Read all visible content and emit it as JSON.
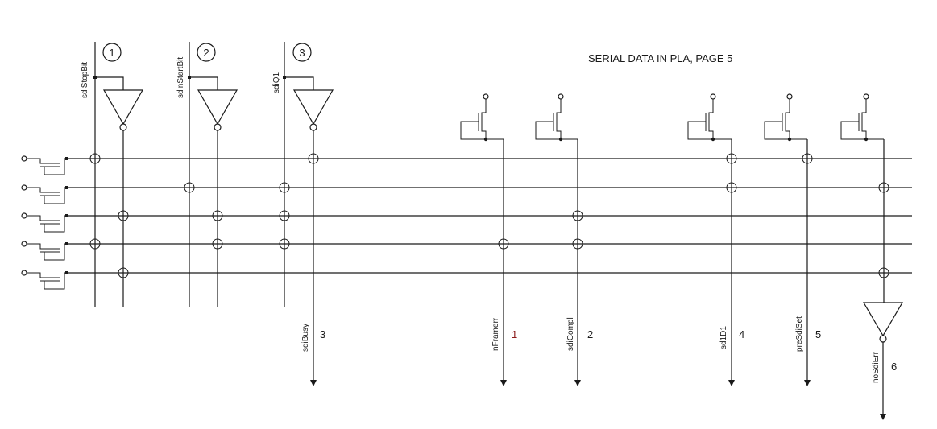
{
  "title": "SERIAL DATA IN PLA, PAGE 5",
  "top_outputs": [
    {
      "label": "sdiStopBit",
      "number": "1"
    },
    {
      "label": "sdinStartBit",
      "number": "2"
    },
    {
      "label": "sdiQ1",
      "number": "3"
    }
  ],
  "bottom_outputs": [
    {
      "label": "sdiBusy",
      "number": "3"
    },
    {
      "label": "nFramerr",
      "number": "1"
    },
    {
      "label": "sdiCompl",
      "number": "2"
    },
    {
      "label": "sd1D1",
      "number": "4"
    },
    {
      "label": "preSdiSet",
      "number": "5"
    },
    {
      "label": "noSdiErr",
      "number": "6"
    }
  ],
  "colors": {
    "ink": "#1a1a1a",
    "red_label": "#8b1a1a"
  }
}
